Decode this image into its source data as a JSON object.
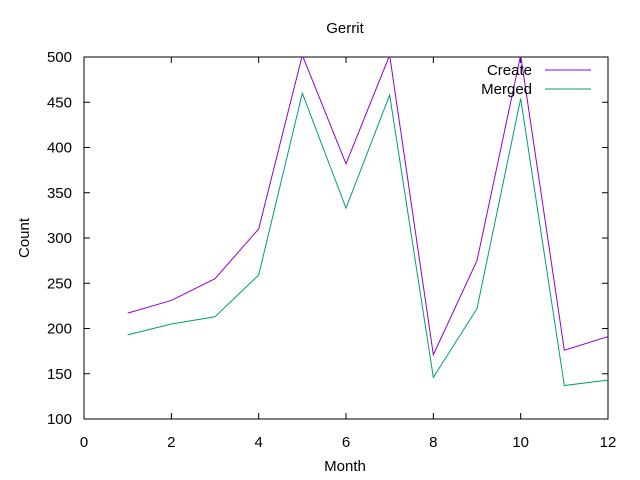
{
  "chart_data": {
    "type": "line",
    "title": "Gerrit",
    "xlabel": "Month",
    "ylabel": "Count",
    "xlim": [
      0,
      12
    ],
    "ylim": [
      100,
      500
    ],
    "xticks": [
      0,
      2,
      4,
      6,
      8,
      10,
      12
    ],
    "yticks": [
      100,
      150,
      200,
      250,
      300,
      350,
      400,
      450,
      500
    ],
    "grid": false,
    "legend_position": "top-right",
    "x": [
      1,
      2,
      3,
      4,
      5,
      6,
      7,
      8,
      9,
      10,
      11,
      12
    ],
    "series": [
      {
        "name": "Create",
        "color": "#9400d3",
        "values": [
          217,
          231,
          255,
          310,
          502,
          382,
          502,
          171,
          275,
          502,
          176,
          191
        ]
      },
      {
        "name": "Merged",
        "color": "#009e73",
        "values": [
          193,
          205,
          213,
          259,
          460,
          333,
          458,
          146,
          222,
          454,
          137,
          143
        ]
      }
    ]
  }
}
